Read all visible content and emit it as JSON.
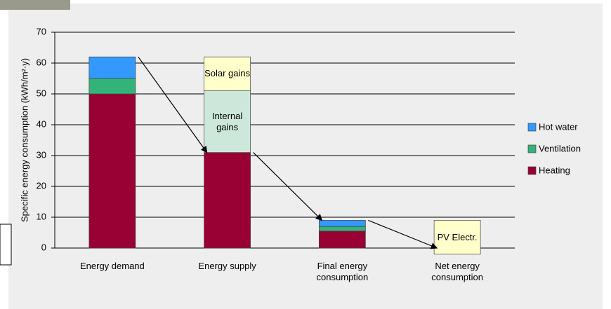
{
  "chart_data": {
    "type": "stacked-bar",
    "y_label": "Specific energy consumption (kWh/m²·y)",
    "categories": [
      "Energy demand",
      "Energy supply",
      "Final energy consumption",
      "Net energy consumption"
    ],
    "series": [
      {
        "name": "Heating",
        "color": "#990033",
        "values": [
          50,
          31,
          5.5,
          null
        ]
      },
      {
        "name": "Ventilation",
        "color": "#33b37a",
        "values": [
          5,
          null,
          1.5,
          null
        ]
      },
      {
        "name": "Hot water",
        "color": "#3399ff",
        "values": [
          7,
          null,
          2,
          null
        ]
      }
    ],
    "boxes": [
      {
        "category": "Energy supply",
        "label": "Internal gains",
        "value": 20,
        "color": "#cde8da"
      },
      {
        "category": "Energy supply",
        "label": "Solar gains",
        "value": 11,
        "color": "#ffffcc"
      },
      {
        "category": "Net energy consumption",
        "label": "PV Electr.",
        "value": 11,
        "bottom": -2,
        "color": "#ffffcc"
      }
    ],
    "ylim": [
      0,
      70
    ],
    "yticks": [
      0,
      10,
      20,
      30,
      40,
      50,
      60,
      70
    ],
    "grid": true,
    "legend": "right"
  }
}
